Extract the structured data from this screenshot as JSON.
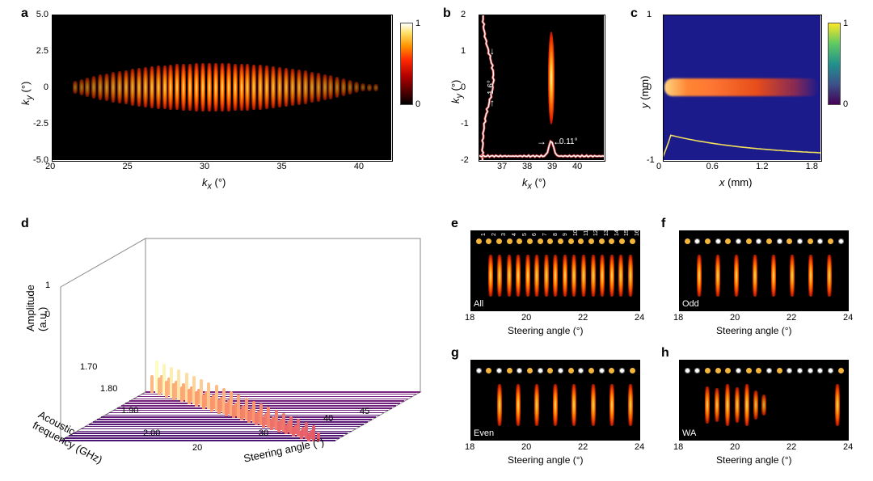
{
  "labels": {
    "a": "a",
    "b": "b",
    "c": "c",
    "d": "d",
    "e": "e",
    "f": "f",
    "g": "g",
    "h": "h"
  },
  "panel_a": {
    "type": "heatmap",
    "xlabel": "kₓ (°)",
    "ylabel": "k_y (°)",
    "xlim": [
      20,
      42
    ],
    "ylim": [
      -5,
      5
    ],
    "xticks": [
      20,
      25,
      30,
      35,
      40
    ],
    "yticks": [
      -5.0,
      -2.5,
      0,
      2.5,
      5.0
    ],
    "colorbar": {
      "min": 0,
      "max": 1,
      "cmap": "hot"
    },
    "stripes": {
      "x_start": 21.5,
      "x_end": 41.0,
      "count": 48,
      "center_peak_x": 30.5,
      "height_deg": 2.0
    }
  },
  "panel_b": {
    "type": "heatmap",
    "xlabel": "kₓ (°)",
    "ylabel": "k_y (°)",
    "xlim": [
      36,
      41
    ],
    "ylim": [
      -2,
      2
    ],
    "xticks": [
      37,
      38,
      39,
      40
    ],
    "yticks": [
      -2,
      -1,
      0,
      1,
      2
    ],
    "spot": {
      "kx": 38.9,
      "ky": 0.25,
      "fwhm_x": 0.11,
      "fwhm_y": 1.6
    },
    "anno_fwhm_x": "0.11°",
    "anno_fwhm_y": "1.6°",
    "marginals": true
  },
  "panel_c": {
    "type": "heatmap",
    "xlabel": "x (mm)",
    "ylabel": "y (mm)",
    "xlim": [
      0,
      1.9
    ],
    "ylim": [
      -1,
      1
    ],
    "xticks": [
      0,
      0.6,
      1.2,
      1.8
    ],
    "yticks": [
      -1,
      0,
      1
    ],
    "colorbar": {
      "min": 0,
      "max": 1,
      "cmap": "viridis"
    },
    "streak_y": 0.0
  },
  "panel_d": {
    "type": "waterfall3d",
    "xlabel": "Steering angle (°)",
    "ylabel": "Acoustic\nfrequency (GHz)",
    "zlabel": "Amplitude\n(a.u.)",
    "x_range": [
      20,
      45
    ],
    "xticks": [
      20,
      30,
      40,
      45
    ],
    "y_range": [
      1.65,
      2.0
    ],
    "yticks": [
      1.7,
      1.8,
      1.9,
      2.0
    ],
    "z_range": [
      0,
      1
    ],
    "zticks": [
      0,
      1
    ],
    "n_rows": 22,
    "peak_shift": {
      "angle_at_1.65": 21,
      "angle_at_2.00": 43
    }
  },
  "panel_e": {
    "type": "heatmap",
    "tag": "All",
    "xlabel": "Steering angle (°)",
    "xlim": [
      18,
      24
    ],
    "xticks": [
      18,
      20,
      22,
      24
    ],
    "channels": 16,
    "beams": {
      "start": 18.7,
      "step": 0.33,
      "count": 16
    },
    "dots": "1111111111111111",
    "show_numbers": true
  },
  "panel_f": {
    "type": "heatmap",
    "tag": "Odd",
    "xlabel": "Steering angle (°)",
    "xlim": [
      18,
      24
    ],
    "xticks": [
      18,
      20,
      22,
      24
    ],
    "channels": 16,
    "beams": {
      "start": 18.7,
      "step": 0.66,
      "count": 8
    },
    "dots": "1010101010101010"
  },
  "panel_g": {
    "type": "heatmap",
    "tag": "Even",
    "xlabel": "Steering angle (°)",
    "xlim": [
      18,
      24
    ],
    "xticks": [
      18,
      20,
      22,
      24
    ],
    "channels": 16,
    "beams": {
      "start": 19.03,
      "step": 0.66,
      "count": 8
    },
    "dots": "0101010101010101"
  },
  "panel_h": {
    "type": "heatmap",
    "tag": "WA",
    "xlabel": "Steering angle (°)",
    "xlim": [
      18,
      24
    ],
    "xticks": [
      18,
      20,
      22,
      24
    ],
    "channels": 16,
    "beams_wa": [
      19.0,
      19.35,
      19.7,
      20.05,
      20.4,
      20.7,
      21.0,
      23.6
    ],
    "beams_wa_amp": [
      0.9,
      0.8,
      1.0,
      0.85,
      1.0,
      0.7,
      0.5,
      1.0
    ],
    "dots": "0011101101000001"
  },
  "colors": {
    "hot": [
      "#000000",
      "#4d0000",
      "#b30000",
      "#ff2a00",
      "#ff9400",
      "#ffe066",
      "#ffffff"
    ],
    "viridis": [
      "#440154",
      "#3b528b",
      "#21918c",
      "#5ec962",
      "#fde725"
    ],
    "trace_white": "#ffffff",
    "trace_red_outline": "#d94545",
    "trace_yellow": "#f1e05a",
    "wf_gradient": [
      "#3b0f70",
      "#8c2981",
      "#de4968",
      "#fe9f6d",
      "#fcfdbf"
    ]
  },
  "fonts": {
    "label_size": 13,
    "tick_size": 11,
    "panel_label_size": 16,
    "panel_label_weight": "bold"
  }
}
